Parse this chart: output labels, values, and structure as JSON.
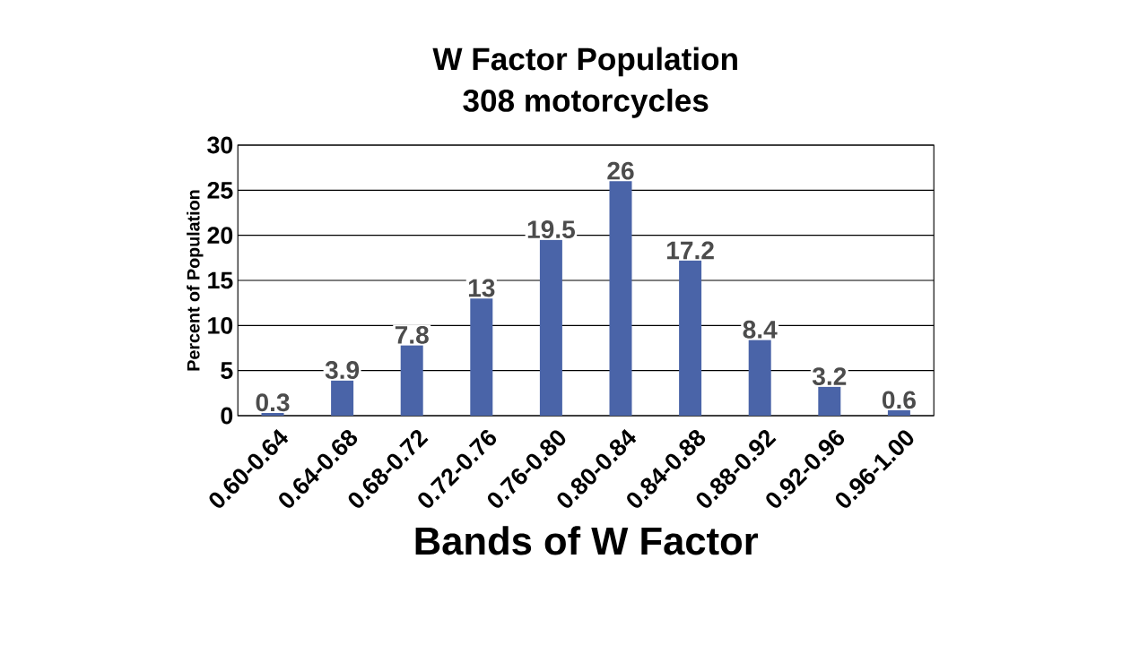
{
  "chart_data": {
    "type": "bar",
    "title": "W Factor Population",
    "subtitle": "308 motorcycles",
    "xlabel": "Bands of W Factor",
    "ylabel": "Percent of Population",
    "categories": [
      "0.60-0.64",
      "0.64-0.68",
      "0.68-0.72",
      "0.72-0.76",
      "0.76-0.80",
      "0.80-0.84",
      "0.84-0.88",
      "0.88-0.92",
      "0.92-0.96",
      "0.96-1.00"
    ],
    "values": [
      0.3,
      3.9,
      7.8,
      13,
      19.5,
      26,
      17.2,
      8.4,
      3.2,
      0.6
    ],
    "color": "#4a64a8",
    "ylim": [
      0,
      30
    ],
    "yticks": [
      0,
      5,
      10,
      15,
      20,
      25,
      30
    ],
    "grid": "y",
    "data_labels": true
  }
}
